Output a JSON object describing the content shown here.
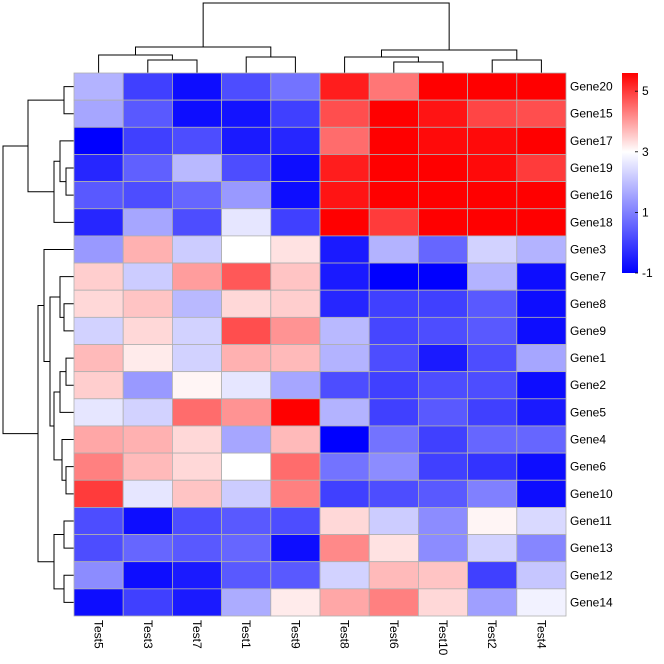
{
  "chart_data": {
    "type": "heatmap",
    "columns": [
      "Test5",
      "Test3",
      "Test7",
      "Test1",
      "Test9",
      "Test8",
      "Test6",
      "Test10",
      "Test2",
      "Test4"
    ],
    "rows": [
      "Gene20",
      "Gene15",
      "Gene17",
      "Gene19",
      "Gene16",
      "Gene18",
      "Gene3",
      "Gene7",
      "Gene8",
      "Gene9",
      "Gene1",
      "Gene2",
      "Gene5",
      "Gene4",
      "Gene6",
      "Gene10",
      "Gene11",
      "Gene13",
      "Gene12",
      "Gene14"
    ],
    "values": [
      [
        1.8,
        0.0,
        -0.8,
        0.2,
        0.8,
        5.3,
        4.4,
        5.6,
        5.6,
        5.6
      ],
      [
        1.6,
        0.4,
        -0.8,
        -0.7,
        0.0,
        4.8,
        5.6,
        5.4,
        4.9,
        4.8
      ],
      [
        -1.0,
        0.0,
        0.2,
        -0.6,
        -0.4,
        4.5,
        5.6,
        5.5,
        5.5,
        5.6
      ],
      [
        -0.4,
        0.5,
        1.9,
        0.2,
        -0.8,
        5.3,
        5.6,
        5.6,
        5.5,
        5.0
      ],
      [
        0.4,
        0.2,
        0.6,
        1.4,
        -0.8,
        5.4,
        5.6,
        5.6,
        5.6,
        5.6
      ],
      [
        -0.4,
        1.6,
        0.2,
        2.6,
        0.0,
        5.6,
        5.0,
        5.6,
        5.6,
        5.6
      ],
      [
        1.4,
        3.8,
        2.2,
        3.0,
        3.3,
        -0.6,
        1.8,
        0.6,
        2.3,
        1.8
      ],
      [
        3.5,
        2.2,
        4.0,
        4.7,
        3.6,
        -0.6,
        -1.0,
        -1.0,
        1.8,
        -0.8
      ],
      [
        3.4,
        3.6,
        1.9,
        3.4,
        3.5,
        -0.4,
        0.0,
        0.0,
        0.4,
        -0.8
      ],
      [
        2.3,
        3.4,
        2.3,
        4.8,
        4.1,
        1.9,
        0.1,
        0.2,
        0.4,
        -0.8
      ],
      [
        3.7,
        3.2,
        2.3,
        3.8,
        3.7,
        1.8,
        0.2,
        -0.6,
        0.2,
        1.6
      ],
      [
        3.5,
        1.4,
        3.1,
        2.6,
        1.6,
        0.2,
        0.0,
        0.2,
        0.2,
        -0.8
      ],
      [
        2.6,
        2.3,
        4.5,
        4.1,
        5.6,
        1.8,
        0.0,
        0.4,
        0.0,
        -0.6
      ],
      [
        3.9,
        3.8,
        3.4,
        1.6,
        3.7,
        -1.0,
        0.8,
        0.0,
        0.6,
        0.6
      ],
      [
        4.3,
        3.7,
        3.4,
        3.0,
        4.5,
        0.8,
        1.2,
        0.0,
        -0.2,
        -0.8
      ],
      [
        5.0,
        2.6,
        3.6,
        2.2,
        4.3,
        0.0,
        0.2,
        0.4,
        1.0,
        -0.8
      ],
      [
        0.2,
        -0.8,
        0.2,
        0.4,
        0.2,
        3.4,
        2.2,
        1.2,
        3.1,
        2.4
      ],
      [
        0.2,
        0.6,
        0.4,
        0.6,
        -0.8,
        4.2,
        3.3,
        1.2,
        2.3,
        1.1
      ],
      [
        1.2,
        -0.8,
        -0.6,
        0.4,
        0.4,
        2.3,
        3.7,
        3.6,
        0.0,
        2.1
      ],
      [
        -0.8,
        0.0,
        -0.6,
        1.7,
        3.2,
        3.9,
        4.3,
        3.4,
        1.5,
        2.8
      ]
    ],
    "color_scale": {
      "min": -1,
      "mid": 3,
      "max": 5.6,
      "low_color": "#0000ff",
      "mid_color": "#ffffff",
      "high_color": "#ff0000",
      "ticks": [
        -1,
        1,
        3,
        5
      ]
    },
    "legend_position": "top-right",
    "cell_border_color": "#b0b0b0",
    "row_dendrogram": {
      "order_leaf_height_max": 5,
      "merges": [
        {
          "a": "Gene20",
          "b": "Gene15",
          "h": 0.3
        },
        {
          "a": "Gene19",
          "b": "Gene16",
          "h": 0.25
        },
        {
          "a": "Gene17",
          "b": "Gene19+Gene16",
          "h": 0.35
        },
        {
          "a": "Gene17+Gene19+Gene16",
          "b": "Gene18",
          "h": 0.45
        },
        {
          "a": "Gene20+Gene15",
          "b": "Gene17+Gene19+Gene16+Gene18",
          "h": 0.6
        },
        {
          "a": "Gene8",
          "b": "Gene9",
          "h": 0.2
        },
        {
          "a": "Gene7",
          "b": "Gene8+Gene9",
          "h": 0.3
        },
        {
          "a": "Gene1",
          "b": "Gene2",
          "h": 0.2
        },
        {
          "a": "Gene1+Gene2",
          "b": "Gene5",
          "h": 0.3
        },
        {
          "a": "Gene6",
          "b": "Gene10",
          "h": 0.2
        },
        {
          "a": "Gene4",
          "b": "Gene6+Gene10",
          "h": 0.25
        },
        {
          "a": "Gene1+Gene2+Gene5",
          "b": "Gene4+Gene6+Gene10",
          "h": 0.4
        },
        {
          "a": "Gene7+Gene8+Gene9",
          "b": "Gene1+Gene2+Gene5+Gene4+Gene6+Gene10",
          "h": 0.45
        },
        {
          "a": "Gene3",
          "b": "Gene7+Gene8+Gene9+Gene1+Gene2+Gene5+Gene4+Gene6+Gene10",
          "h": 0.55
        },
        {
          "a": "Gene11",
          "b": "Gene13",
          "h": 0.2
        },
        {
          "a": "Gene12",
          "b": "Gene14",
          "h": 0.2
        },
        {
          "a": "Gene11+Gene13",
          "b": "Gene12+Gene14",
          "h": 0.4
        },
        {
          "a": "Gene3-group",
          "b": "Gene11-group",
          "h": 0.7
        },
        {
          "a": "Gene20-group",
          "b": "Gene3+Gene11-group",
          "h": 1.0
        }
      ]
    }
  }
}
